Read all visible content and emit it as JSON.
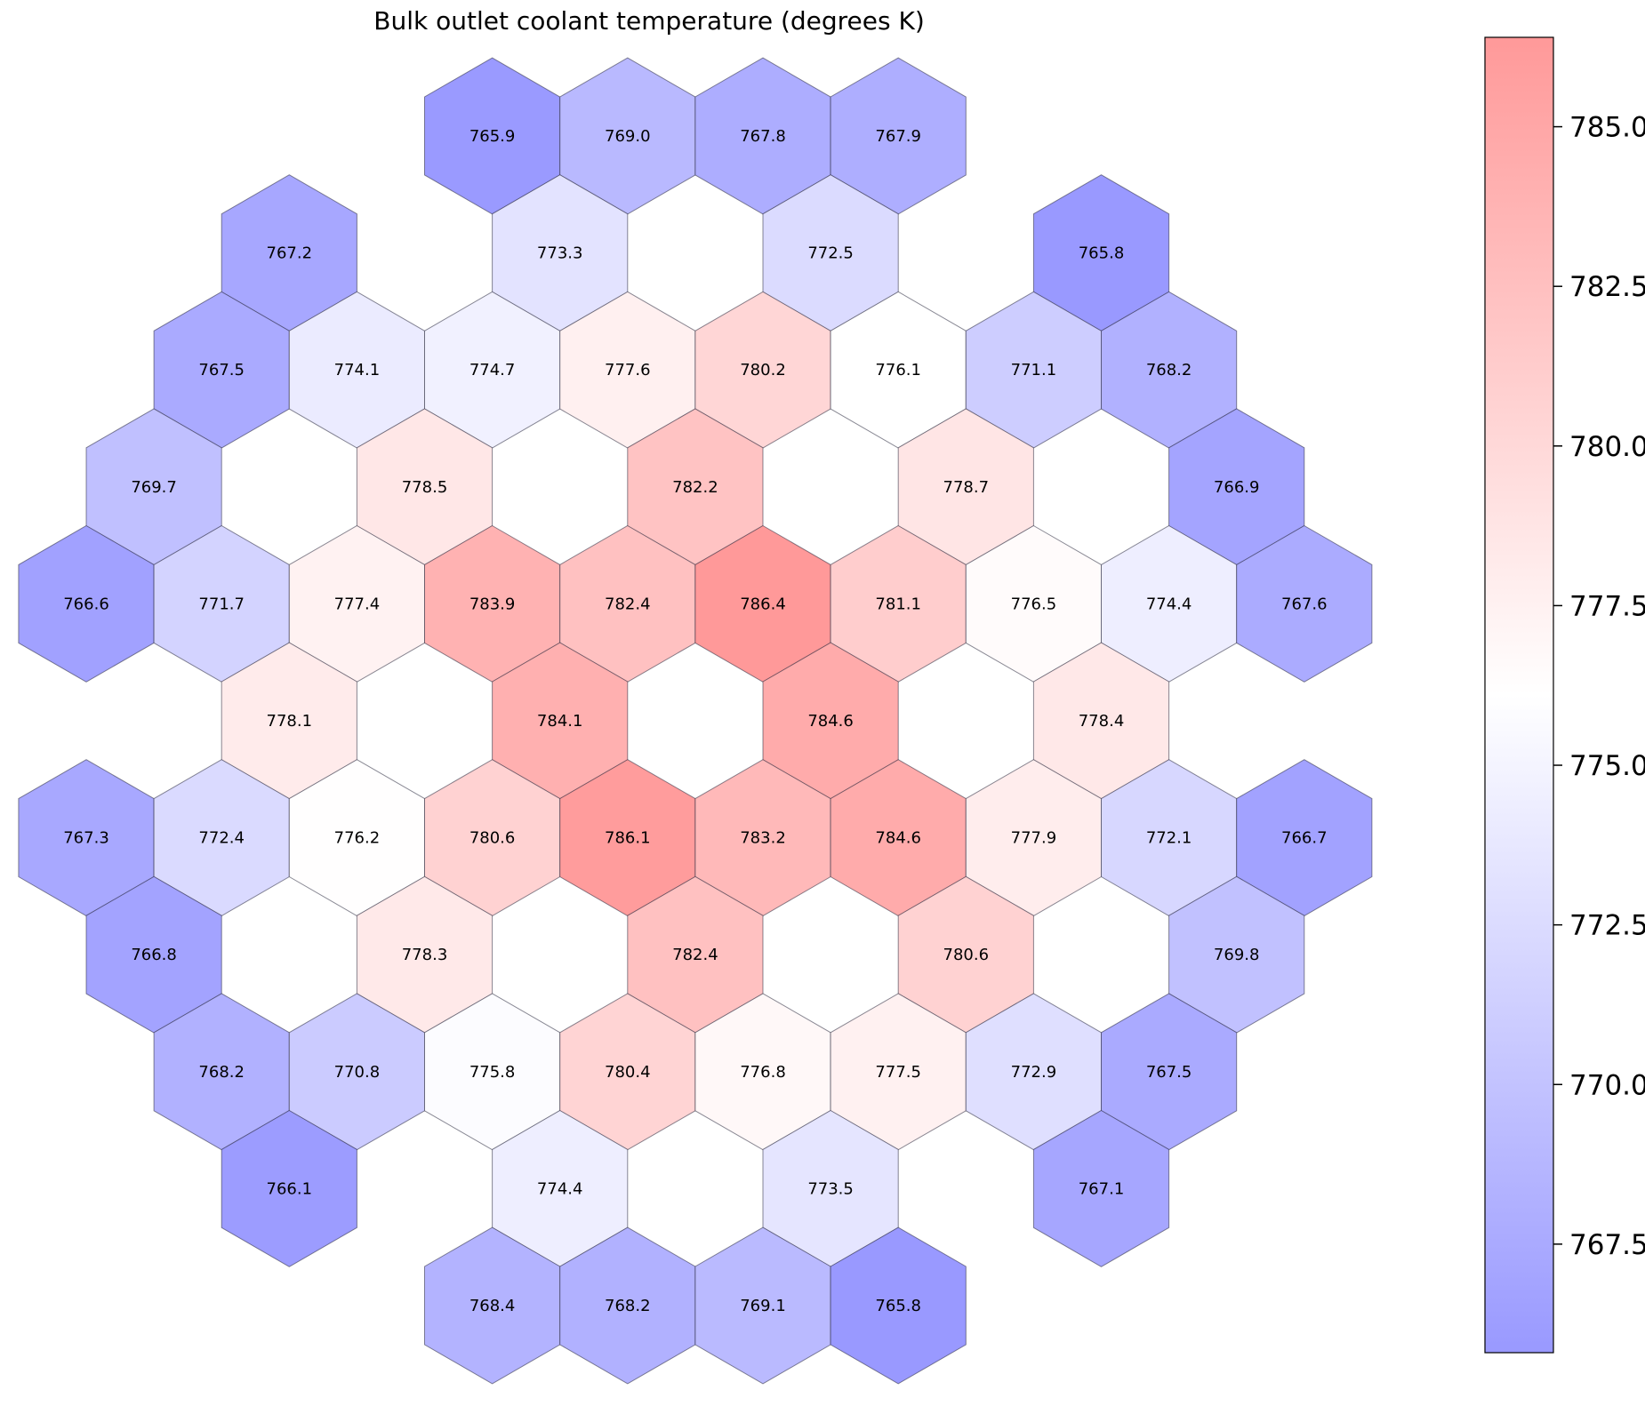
{
  "chart_data": {
    "type": "heatmap",
    "layout": "hexagonal",
    "title": "Bulk outlet coolant temperature (degrees K)",
    "colormap": {
      "low": "#9999ff",
      "mid": "#ffffff",
      "high": "#ff9999"
    },
    "vmin": 765.8,
    "vmax": 786.4,
    "colorbar": {
      "ticks": [
        767.5,
        770.0,
        772.5,
        775.0,
        777.5,
        780.0,
        782.5,
        785.0
      ],
      "tick_labels": [
        "767.5",
        "770.0",
        "772.5",
        "775.0",
        "777.5",
        "780.0",
        "782.5",
        "785.0"
      ]
    },
    "assemblies": [
      {
        "col": 6,
        "row": 0,
        "value": 765.9,
        "label": "765.9"
      },
      {
        "col": 8,
        "row": 0,
        "value": 769.0,
        "label": "769.0"
      },
      {
        "col": 10,
        "row": 0,
        "value": 767.8,
        "label": "767.8"
      },
      {
        "col": 12,
        "row": 0,
        "value": 767.9,
        "label": "767.9"
      },
      {
        "col": 3,
        "row": 1,
        "value": 767.2,
        "label": "767.2"
      },
      {
        "col": 7,
        "row": 1,
        "value": 773.3,
        "label": "773.3"
      },
      {
        "col": 11,
        "row": 1,
        "value": 772.5,
        "label": "772.5"
      },
      {
        "col": 15,
        "row": 1,
        "value": 765.8,
        "label": "765.8"
      },
      {
        "col": 2,
        "row": 2,
        "value": 767.5,
        "label": "767.5"
      },
      {
        "col": 4,
        "row": 2,
        "value": 774.1,
        "label": "774.1"
      },
      {
        "col": 6,
        "row": 2,
        "value": 774.7,
        "label": "774.7"
      },
      {
        "col": 8,
        "row": 2,
        "value": 777.6,
        "label": "777.6"
      },
      {
        "col": 10,
        "row": 2,
        "value": 780.2,
        "label": "780.2"
      },
      {
        "col": 12,
        "row": 2,
        "value": 776.1,
        "label": "776.1"
      },
      {
        "col": 14,
        "row": 2,
        "value": 771.1,
        "label": "771.1"
      },
      {
        "col": 16,
        "row": 2,
        "value": 768.2,
        "label": "768.2"
      },
      {
        "col": 1,
        "row": 3,
        "value": 769.7,
        "label": "769.7"
      },
      {
        "col": 5,
        "row": 3,
        "value": 778.5,
        "label": "778.5"
      },
      {
        "col": 9,
        "row": 3,
        "value": 782.2,
        "label": "782.2"
      },
      {
        "col": 13,
        "row": 3,
        "value": 778.7,
        "label": "778.7"
      },
      {
        "col": 17,
        "row": 3,
        "value": 766.9,
        "label": "766.9"
      },
      {
        "col": 0,
        "row": 4,
        "value": 766.6,
        "label": "766.6"
      },
      {
        "col": 2,
        "row": 4,
        "value": 771.7,
        "label": "771.7"
      },
      {
        "col": 4,
        "row": 4,
        "value": 777.4,
        "label": "777.4"
      },
      {
        "col": 6,
        "row": 4,
        "value": 783.9,
        "label": "783.9"
      },
      {
        "col": 8,
        "row": 4,
        "value": 782.4,
        "label": "782.4"
      },
      {
        "col": 10,
        "row": 4,
        "value": 786.4,
        "label": "786.4"
      },
      {
        "col": 12,
        "row": 4,
        "value": 781.1,
        "label": "781.1"
      },
      {
        "col": 14,
        "row": 4,
        "value": 776.5,
        "label": "776.5"
      },
      {
        "col": 16,
        "row": 4,
        "value": 774.4,
        "label": "774.4"
      },
      {
        "col": 18,
        "row": 4,
        "value": 767.6,
        "label": "767.6"
      },
      {
        "col": 3,
        "row": 5,
        "value": 778.1,
        "label": "778.1"
      },
      {
        "col": 7,
        "row": 5,
        "value": 784.1,
        "label": "784.1"
      },
      {
        "col": 11,
        "row": 5,
        "value": 784.6,
        "label": "784.6"
      },
      {
        "col": 15,
        "row": 5,
        "value": 778.4,
        "label": "778.4"
      },
      {
        "col": 0,
        "row": 6,
        "value": 767.3,
        "label": "767.3"
      },
      {
        "col": 2,
        "row": 6,
        "value": 772.4,
        "label": "772.4"
      },
      {
        "col": 4,
        "row": 6,
        "value": 776.2,
        "label": "776.2"
      },
      {
        "col": 6,
        "row": 6,
        "value": 780.6,
        "label": "780.6"
      },
      {
        "col": 8,
        "row": 6,
        "value": 786.1,
        "label": "786.1"
      },
      {
        "col": 10,
        "row": 6,
        "value": 783.2,
        "label": "783.2"
      },
      {
        "col": 12,
        "row": 6,
        "value": 784.6,
        "label": "784.6"
      },
      {
        "col": 14,
        "row": 6,
        "value": 777.9,
        "label": "777.9"
      },
      {
        "col": 16,
        "row": 6,
        "value": 772.1,
        "label": "772.1"
      },
      {
        "col": 18,
        "row": 6,
        "value": 766.7,
        "label": "766.7"
      },
      {
        "col": 1,
        "row": 7,
        "value": 766.8,
        "label": "766.8"
      },
      {
        "col": 5,
        "row": 7,
        "value": 778.3,
        "label": "778.3"
      },
      {
        "col": 9,
        "row": 7,
        "value": 782.4,
        "label": "782.4"
      },
      {
        "col": 13,
        "row": 7,
        "value": 780.6,
        "label": "780.6"
      },
      {
        "col": 17,
        "row": 7,
        "value": 769.8,
        "label": "769.8"
      },
      {
        "col": 2,
        "row": 8,
        "value": 768.2,
        "label": "768.2"
      },
      {
        "col": 4,
        "row": 8,
        "value": 770.8,
        "label": "770.8"
      },
      {
        "col": 6,
        "row": 8,
        "value": 775.8,
        "label": "775.8"
      },
      {
        "col": 8,
        "row": 8,
        "value": 780.4,
        "label": "780.4"
      },
      {
        "col": 10,
        "row": 8,
        "value": 776.8,
        "label": "776.8"
      },
      {
        "col": 12,
        "row": 8,
        "value": 777.5,
        "label": "777.5"
      },
      {
        "col": 14,
        "row": 8,
        "value": 772.9,
        "label": "772.9"
      },
      {
        "col": 16,
        "row": 8,
        "value": 767.5,
        "label": "767.5"
      },
      {
        "col": 3,
        "row": 9,
        "value": 766.1,
        "label": "766.1"
      },
      {
        "col": 7,
        "row": 9,
        "value": 774.4,
        "label": "774.4"
      },
      {
        "col": 11,
        "row": 9,
        "value": 773.5,
        "label": "773.5"
      },
      {
        "col": 15,
        "row": 9,
        "value": 767.1,
        "label": "767.1"
      },
      {
        "col": 6,
        "row": 10,
        "value": 768.4,
        "label": "768.4"
      },
      {
        "col": 8,
        "row": 10,
        "value": 768.2,
        "label": "768.2"
      },
      {
        "col": 10,
        "row": 10,
        "value": 769.1,
        "label": "769.1"
      },
      {
        "col": 12,
        "row": 10,
        "value": 765.8,
        "label": "765.8"
      }
    ]
  }
}
